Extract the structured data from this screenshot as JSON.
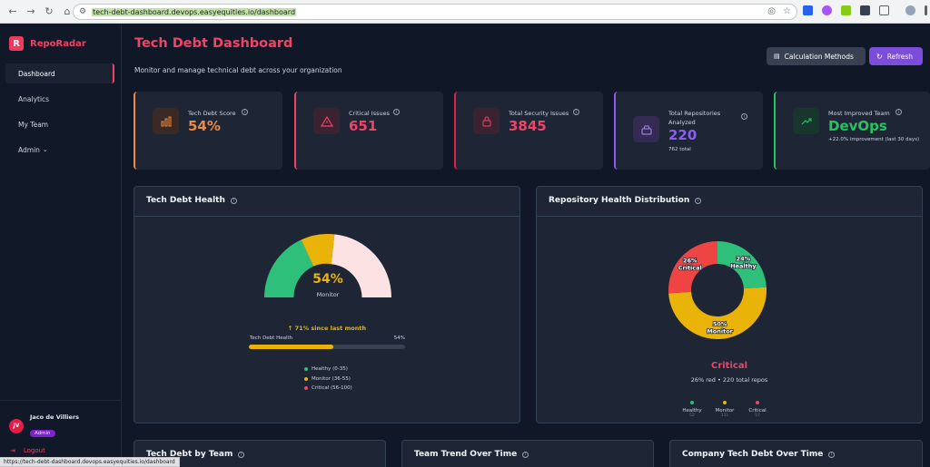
{
  "browser": {
    "url": "tech-debt-dashboard.devops.easyequities.io/dashboard",
    "status_url": "https://tech-debt-dashboard.devops.easyequities.io/dashboard"
  },
  "sidebar": {
    "brand_letter": "R",
    "brand_name": "RepoRadar",
    "items": [
      {
        "label": "Dashboard",
        "active": true
      },
      {
        "label": "Analytics"
      },
      {
        "label": "My Team"
      },
      {
        "label": "Admin"
      }
    ],
    "user": {
      "initials": "JV",
      "name": "Jaco de Villiers",
      "role": "Admin"
    },
    "logout_label": "Logout"
  },
  "header": {
    "title": "Tech Debt Dashboard",
    "subtitle": "Monitor and manage technical debt across your organization",
    "calc_button": "Calculation Methods",
    "refresh_button": "Refresh"
  },
  "cards": [
    {
      "label": "Tech Debt Score",
      "value": "54%",
      "color": "#f0883e",
      "icon": "bar-chart-icon"
    },
    {
      "label": "Critical Issues",
      "value": "651",
      "color": "#ef4466",
      "icon": "warning-icon"
    },
    {
      "label": "Total Security Issues",
      "value": "3845",
      "color": "#ef4466",
      "icon": "lock-icon"
    },
    {
      "label": "Total Repositories Analyzed",
      "value": "220",
      "sub": "762 total",
      "color": "#8b5cf6",
      "icon": "repository-icon"
    },
    {
      "label": "Most Improved Team",
      "value": "DevOps",
      "sub": "+22.0% improvement (last 30 days)",
      "color": "#22c55e",
      "icon": "trend-up-icon"
    }
  ],
  "health": {
    "title": "Tech Debt Health",
    "score": "54%",
    "status": "Monitor",
    "since": "↑ 71% since last month",
    "bar_label": "Tech Debt Health",
    "bar_value": "54%",
    "bar_fraction": 0.54,
    "legend": [
      {
        "label": "Healthy (0-35)",
        "color": "#2ebf7a"
      },
      {
        "label": "Monitor (36-55)",
        "color": "#eab308"
      },
      {
        "label": "Critical (56-100)",
        "color": "#ef4466"
      }
    ]
  },
  "distribution": {
    "title": "Repository Health Distribution",
    "summary_status": "Critical",
    "summary_text": "26% red • 220 total repos",
    "legend": [
      {
        "label": "Healthy",
        "count": "52",
        "color": "#2ebf7a"
      },
      {
        "label": "Monitor",
        "count": "111",
        "color": "#eab308"
      },
      {
        "label": "Critical",
        "count": "57",
        "color": "#ef4466"
      }
    ]
  },
  "chart_data": {
    "type": "pie",
    "categories": [
      "Healthy",
      "Monitor",
      "Critical"
    ],
    "values": [
      24,
      50,
      26
    ],
    "labels": [
      [
        "24%",
        "Healthy"
      ],
      [
        "50%",
        "Monitor"
      ],
      [
        "26%",
        "Critical"
      ]
    ],
    "colors": [
      "#2ebf7a",
      "#eab308",
      "#ef4444"
    ]
  },
  "bottom_panels": [
    {
      "title": "Tech Debt by Team"
    },
    {
      "title": "Team Trend Over Time"
    },
    {
      "title": "Company Tech Debt Over Time"
    }
  ]
}
